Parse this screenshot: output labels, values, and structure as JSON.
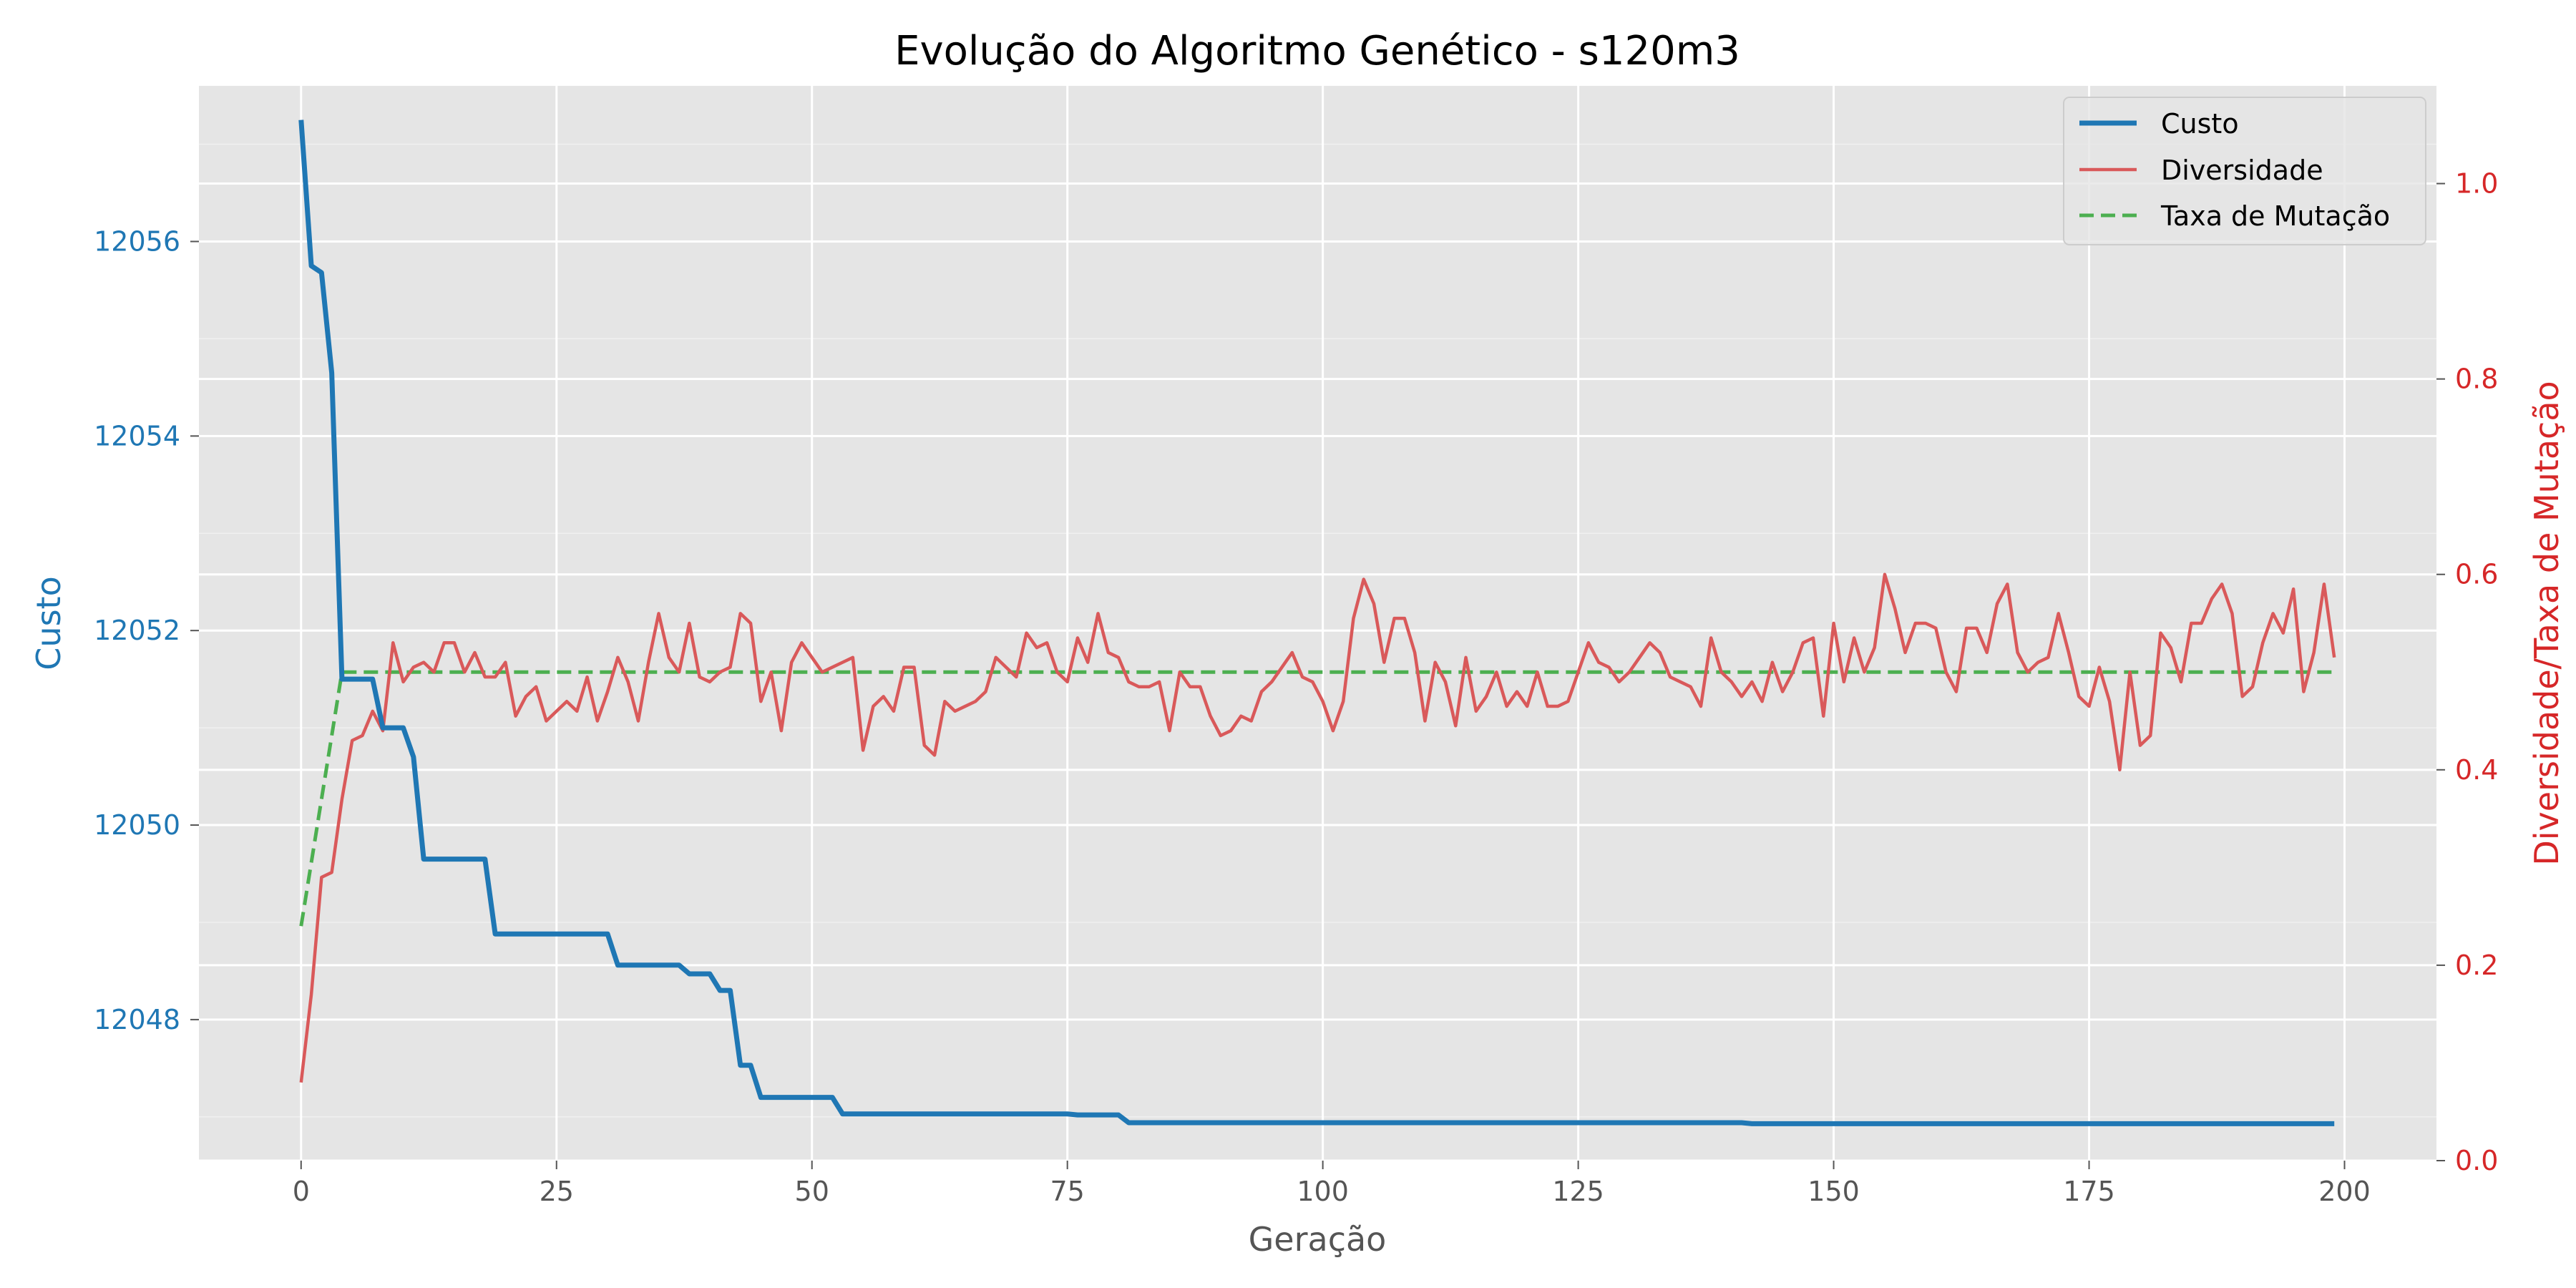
{
  "chart_data": {
    "type": "line",
    "title": "Evolução do Algoritmo Genético - s120m3",
    "xlabel": "Geração",
    "ylabel_left": "Custo",
    "ylabel_right": "Diversidade/Taxa de Mutação",
    "xlim": [
      -10,
      209
    ],
    "ylim_left": [
      12046.55,
      12057.6
    ],
    "ylim_right": [
      0,
      1.1
    ],
    "xticks": [
      "0",
      "25",
      "50",
      "75",
      "100",
      "125",
      "150",
      "175",
      "200"
    ],
    "yticks_left": [
      "12048",
      "12050",
      "12052",
      "12054",
      "12056"
    ],
    "yticks_right": [
      "0.0",
      "0.2",
      "0.4",
      "0.6",
      "0.8",
      "1.0"
    ],
    "grid": true,
    "legend_position": "top-right",
    "colors": {
      "custo": "#1f77b4",
      "diversidade": "#d62728",
      "diversidade_line": "#d9595a",
      "taxa": "#4caf50",
      "plot_bg": "#e5e5e5",
      "grid": "#ffffff"
    },
    "series": [
      {
        "name": "Custo",
        "axis": "left",
        "points": [
          [
            0,
            12057.25
          ],
          [
            1,
            12055.75
          ],
          [
            2,
            12055.68
          ],
          [
            3,
            12054.65
          ],
          [
            4,
            12051.5
          ],
          [
            5,
            12051.5
          ],
          [
            6,
            12051.5
          ],
          [
            7,
            12051.5
          ],
          [
            8,
            12051.0
          ],
          [
            9,
            12051.0
          ],
          [
            10,
            12051.0
          ],
          [
            11,
            12050.7
          ],
          [
            12,
            12049.65
          ],
          [
            13,
            12049.65
          ],
          [
            14,
            12049.65
          ],
          [
            15,
            12049.65
          ],
          [
            16,
            12049.65
          ],
          [
            17,
            12049.65
          ],
          [
            18,
            12049.65
          ],
          [
            19,
            12048.88
          ],
          [
            20,
            12048.88
          ],
          [
            21,
            12048.88
          ],
          [
            22,
            12048.88
          ],
          [
            23,
            12048.88
          ],
          [
            24,
            12048.88
          ],
          [
            25,
            12048.88
          ],
          [
            26,
            12048.88
          ],
          [
            27,
            12048.88
          ],
          [
            28,
            12048.88
          ],
          [
            29,
            12048.88
          ],
          [
            30,
            12048.88
          ],
          [
            31,
            12048.56
          ],
          [
            32,
            12048.56
          ],
          [
            33,
            12048.56
          ],
          [
            34,
            12048.56
          ],
          [
            35,
            12048.56
          ],
          [
            36,
            12048.56
          ],
          [
            37,
            12048.56
          ],
          [
            38,
            12048.47
          ],
          [
            39,
            12048.47
          ],
          [
            40,
            12048.47
          ],
          [
            41,
            12048.3
          ],
          [
            42,
            12048.3
          ],
          [
            43,
            12047.53
          ],
          [
            44,
            12047.53
          ],
          [
            45,
            12047.2
          ],
          [
            46,
            12047.2
          ],
          [
            47,
            12047.2
          ],
          [
            48,
            12047.2
          ],
          [
            49,
            12047.2
          ],
          [
            50,
            12047.2
          ],
          [
            51,
            12047.2
          ],
          [
            52,
            12047.2
          ],
          [
            53,
            12047.03
          ],
          [
            54,
            12047.03
          ],
          [
            75,
            12047.03
          ],
          [
            76,
            12047.02
          ],
          [
            80,
            12047.02
          ],
          [
            81,
            12046.94
          ],
          [
            141,
            12046.94
          ],
          [
            142,
            12046.93
          ],
          [
            199,
            12046.93
          ]
        ]
      },
      {
        "name": "Diversidade",
        "axis": "right",
        "x_start": 0,
        "values": [
          0.08,
          0.17,
          0.29,
          0.295,
          0.37,
          0.43,
          0.435,
          0.46,
          0.44,
          0.53,
          0.49,
          0.505,
          0.51,
          0.5,
          0.53,
          0.53,
          0.5,
          0.52,
          0.495,
          0.495,
          0.51,
          0.455,
          0.475,
          0.485,
          0.45,
          0.46,
          0.47,
          0.46,
          0.495,
          0.45,
          0.48,
          0.515,
          0.49,
          0.45,
          0.51,
          0.56,
          0.515,
          0.5,
          0.55,
          0.495,
          0.49,
          0.5,
          0.505,
          0.56,
          0.55,
          0.47,
          0.5,
          0.44,
          0.51,
          0.53,
          0.515,
          0.5,
          0.505,
          0.51,
          0.515,
          0.42,
          0.465,
          0.475,
          0.46,
          0.505,
          0.505,
          0.425,
          0.415,
          0.47,
          0.46,
          0.465,
          0.47,
          0.48,
          0.515,
          0.505,
          0.495,
          0.54,
          0.525,
          0.53,
          0.5,
          0.49,
          0.535,
          0.51,
          0.56,
          0.52,
          0.515,
          0.49,
          0.485,
          0.485,
          0.49,
          0.44,
          0.5,
          0.485,
          0.485,
          0.455,
          0.435,
          0.44,
          0.455,
          0.45,
          0.48,
          0.49,
          0.505,
          0.52,
          0.495,
          0.49,
          0.47,
          0.44,
          0.47,
          0.555,
          0.595,
          0.57,
          0.51,
          0.555,
          0.555,
          0.52,
          0.45,
          0.51,
          0.49,
          0.445,
          0.515,
          0.46,
          0.475,
          0.5,
          0.465,
          0.48,
          0.465,
          0.5,
          0.465,
          0.465,
          0.47,
          0.5,
          0.53,
          0.51,
          0.505,
          0.49,
          0.5,
          0.515,
          0.53,
          0.52,
          0.495,
          0.49,
          0.485,
          0.465,
          0.535,
          0.5,
          0.49,
          0.475,
          0.49,
          0.47,
          0.51,
          0.48,
          0.5,
          0.53,
          0.535,
          0.455,
          0.55,
          0.49,
          0.535,
          0.5,
          0.525,
          0.6,
          0.565,
          0.52,
          0.55,
          0.55,
          0.545,
          0.5,
          0.48,
          0.545,
          0.545,
          0.52,
          0.57,
          0.59,
          0.52,
          0.5,
          0.51,
          0.515,
          0.56,
          0.52,
          0.475,
          0.465,
          0.505,
          0.47,
          0.4,
          0.5,
          0.425,
          0.435,
          0.54,
          0.525,
          0.49,
          0.55,
          0.55,
          0.575,
          0.59,
          0.56,
          0.475,
          0.485,
          0.53,
          0.56,
          0.54,
          0.585,
          0.48,
          0.52,
          0.59,
          0.515
        ]
      },
      {
        "name": "Taxa de Mutação",
        "axis": "right",
        "dashed": true,
        "points": [
          [
            0,
            0.24
          ],
          [
            4,
            0.5
          ],
          [
            199,
            0.5
          ]
        ]
      }
    ]
  }
}
